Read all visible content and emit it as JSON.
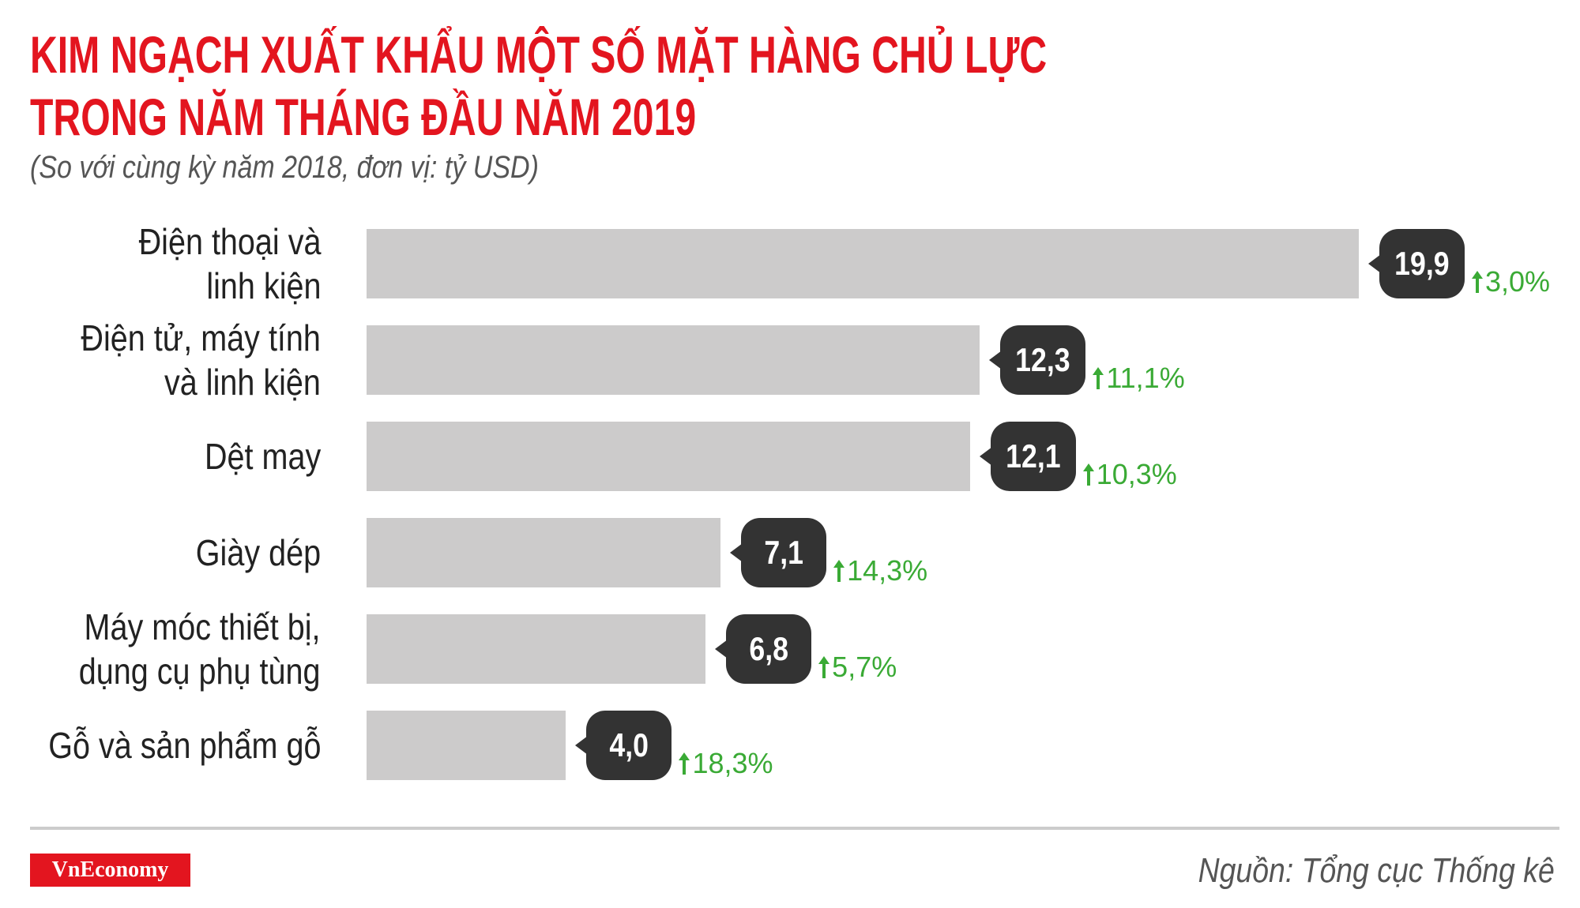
{
  "chart_data": {
    "type": "bar",
    "orientation": "horizontal",
    "title": [
      "KIM NGẠCH XUẤT KHẨU MỘT SỐ MẶT HÀNG CHỦ LỰC",
      "TRONG NĂM THÁNG ĐẦU NĂM 2019"
    ],
    "subtitle": "(So với cùng kỳ năm 2018, đơn vị: tỷ USD)",
    "categories": [
      "Điện thoại và\nlinh kiện",
      "Điện tử, máy tính\nvà linh kiện",
      "Dệt may",
      "Giày dép",
      "Máy móc thiết bị,\ndụng cụ phụ tùng",
      "Gỗ và sản phẩm gỗ"
    ],
    "values": [
      19.9,
      12.3,
      12.1,
      7.1,
      6.8,
      4.0
    ],
    "value_labels": [
      "19,9",
      "12,3",
      "12,1",
      "7,1",
      "6,8",
      "4,0"
    ],
    "color": "#cccbcb",
    "growth": {
      "values": [
        3.0,
        11.1,
        10.3,
        14.3,
        5.7,
        18.3
      ],
      "value_labels": [
        "3,0%",
        "11,1%",
        "10,3%",
        "14,3%",
        "5,7%",
        "18,3%"
      ],
      "color": "#3aaa35"
    },
    "logo": "VnEconomy",
    "source": "Nguồn: Tổng cục Thống kê"
  }
}
